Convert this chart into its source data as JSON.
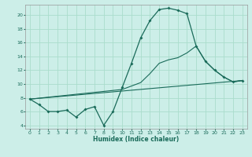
{
  "xlabel": "Humidex (Indice chaleur)",
  "background_color": "#cceee8",
  "grid_color": "#aaddcc",
  "line_color": "#1a6b5a",
  "xlim": [
    -0.5,
    23.5
  ],
  "ylim": [
    3.5,
    21.5
  ],
  "xticks": [
    0,
    1,
    2,
    3,
    4,
    5,
    6,
    7,
    8,
    9,
    10,
    11,
    12,
    13,
    14,
    15,
    16,
    17,
    18,
    19,
    20,
    21,
    22,
    23
  ],
  "yticks": [
    4,
    6,
    8,
    10,
    12,
    14,
    16,
    18,
    20
  ],
  "line1_x": [
    0,
    1,
    2,
    3,
    4,
    5,
    6,
    7,
    8,
    9,
    10,
    11,
    12,
    13,
    14,
    15,
    16,
    17,
    18,
    19,
    20,
    21,
    22,
    23
  ],
  "line1_y": [
    7.8,
    7.0,
    6.0,
    6.0,
    6.2,
    5.2,
    6.3,
    6.7,
    4.0,
    6.0,
    9.5,
    13.0,
    16.7,
    19.2,
    20.8,
    21.0,
    20.7,
    20.2,
    15.5,
    13.3,
    12.0,
    11.0,
    10.3,
    10.5
  ],
  "line2_x": [
    0,
    23
  ],
  "line2_y": [
    7.8,
    10.5
  ],
  "line3_x": [
    0,
    10,
    11,
    12,
    13,
    14,
    15,
    16,
    17,
    18,
    19,
    20,
    21,
    22,
    23
  ],
  "line3_y": [
    7.8,
    9.2,
    9.7,
    10.2,
    11.5,
    13.0,
    13.5,
    13.8,
    14.5,
    15.5,
    13.3,
    12.0,
    11.0,
    10.3,
    10.5
  ]
}
